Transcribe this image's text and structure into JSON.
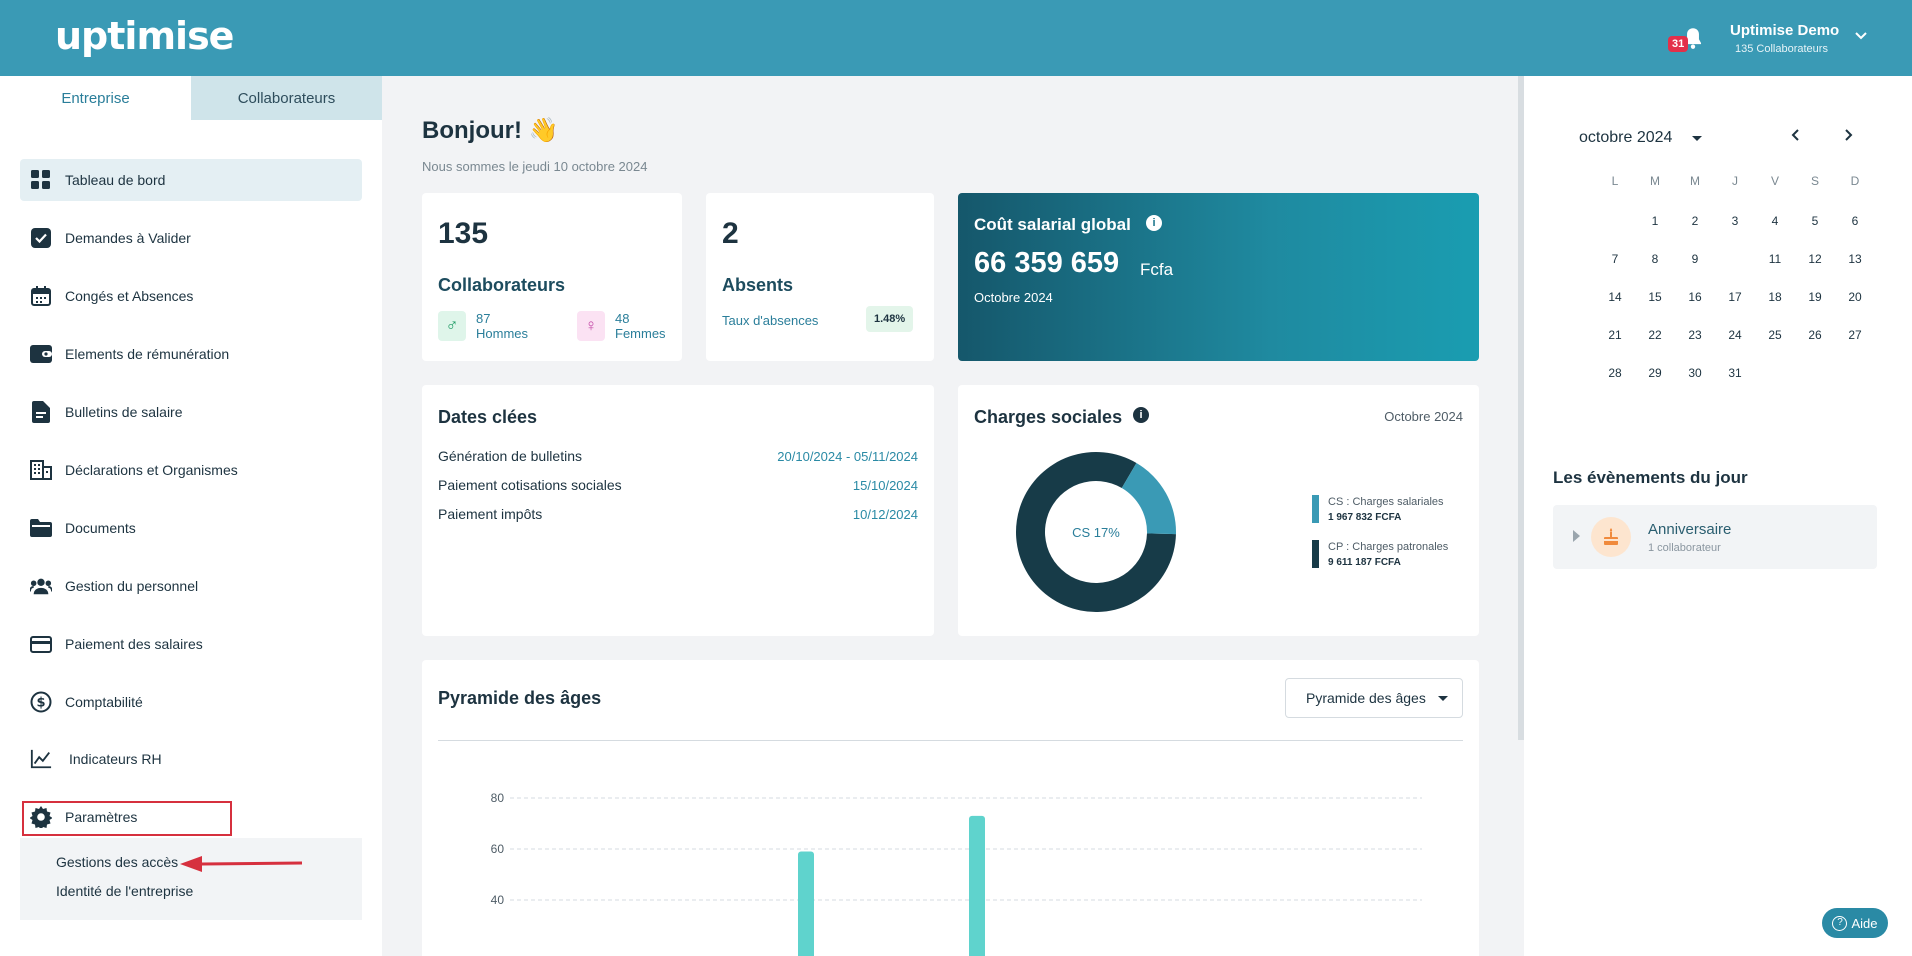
{
  "app": {
    "logo": "uptimise"
  },
  "header": {
    "notification_count": "31",
    "user_name": "Uptimise Demo",
    "user_sub": "135 Collaborateurs"
  },
  "sidebar": {
    "tabs": [
      {
        "label": "Entreprise"
      },
      {
        "label": "Collaborateurs"
      }
    ],
    "items": [
      {
        "label": "Tableau de bord",
        "icon": "dashboard-icon"
      },
      {
        "label": "Demandes à Valider",
        "icon": "check-icon"
      },
      {
        "label": "Congés et Absences",
        "icon": "calendar-icon"
      },
      {
        "label": "Elements de rémunération",
        "icon": "wallet-icon"
      },
      {
        "label": "Bulletins de salaire",
        "icon": "payslip-icon"
      },
      {
        "label": "Déclarations et Organismes",
        "icon": "building-icon"
      },
      {
        "label": "Documents",
        "icon": "folder-icon"
      },
      {
        "label": "Gestion du personnel",
        "icon": "people-icon"
      },
      {
        "label": "Paiement des salaires",
        "icon": "card-icon"
      },
      {
        "label": "Comptabilité",
        "icon": "dollar-icon"
      },
      {
        "label": "Indicateurs RH",
        "icon": "chart-icon"
      },
      {
        "label": "Paramètres",
        "icon": "gear-icon"
      }
    ],
    "submenu": [
      {
        "label": "Gestions des accès"
      },
      {
        "label": "Identité de l'entreprise"
      }
    ]
  },
  "main": {
    "greeting": "Bonjour! 👋",
    "date": "Nous sommes le jeudi 10 octobre 2024",
    "collab": {
      "count": "135",
      "label": "Collaborateurs",
      "men_count": "87",
      "men_label": "Hommes",
      "women_count": "48",
      "women_label": "Femmes"
    },
    "absents": {
      "count": "2",
      "label": "Absents",
      "rate_label": "Taux d'absences",
      "rate_value": "1.48%"
    },
    "cost": {
      "title": "Coût salarial global",
      "value": "66 359 659",
      "currency": "Fcfa",
      "period": "Octobre 2024"
    },
    "key_dates": {
      "title": "Dates clées",
      "rows": [
        {
          "label": "Génération de bulletins",
          "value": "20/10/2024 - 05/11/2024"
        },
        {
          "label": "Paiement cotisations sociales",
          "value": "15/10/2024"
        },
        {
          "label": "Paiement impôts",
          "value": "10/12/2024"
        }
      ]
    },
    "charges": {
      "title": "Charges sociales",
      "period": "Octobre 2024",
      "center_label": "CS 17%",
      "legend": [
        {
          "label": "CS : Charges salariales",
          "value": "1 967 832 FCFA",
          "color": "#3a9ab5"
        },
        {
          "label": "CP : Charges patronales",
          "value": "9 611 187 FCFA",
          "color": "#173b48"
        }
      ]
    },
    "pyramid": {
      "title": "Pyramide des âges",
      "select_value": "Pyramide des âges"
    }
  },
  "chart_data": [
    {
      "type": "pie",
      "categories": [
        "CS : Charges salariales",
        "CP : Charges patronales"
      ],
      "values": [
        1967832,
        9611187
      ],
      "colors": [
        "#3a9ab5",
        "#173b48"
      ]
    },
    {
      "type": "bar",
      "title": "Pyramide des âges",
      "ylim": [
        0,
        80
      ],
      "yticks": [
        "80",
        "60",
        "40"
      ],
      "values": [
        59,
        73
      ],
      "color": "#5fd3cd"
    }
  ],
  "calendar": {
    "month_label": "octobre 2024",
    "weekdays": [
      "L",
      "M",
      "M",
      "J",
      "V",
      "S",
      "D"
    ],
    "first_weekday_index": 1,
    "days_in_month": 31,
    "today": 10
  },
  "events": {
    "title": "Les évènements du jour",
    "items": [
      {
        "title": "Anniversaire",
        "sub": "1 collaborateur"
      }
    ]
  },
  "help": {
    "label": "Aide"
  }
}
